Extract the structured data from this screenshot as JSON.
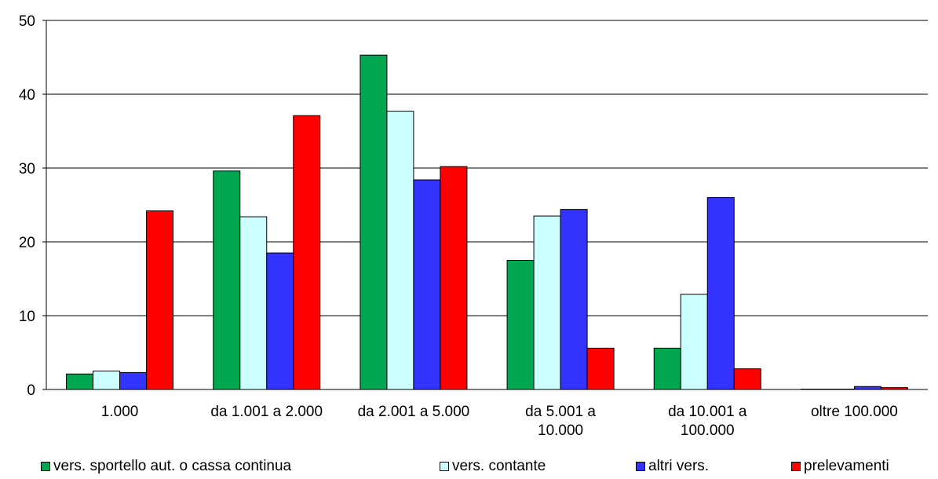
{
  "chart_data": {
    "type": "bar",
    "title": "",
    "xlabel": "",
    "ylabel": "",
    "ylim": [
      0,
      50
    ],
    "yticks": [
      0,
      10,
      20,
      30,
      40,
      50
    ],
    "grid": true,
    "legend_position": "bottom",
    "categories": [
      [
        "1.000"
      ],
      [
        "da 1.001 a 2.000"
      ],
      [
        "da 2.001 a 5.000"
      ],
      [
        "da 5.001 a",
        "10.000"
      ],
      [
        "da 10.001 a",
        "100.000"
      ],
      [
        "oltre 100.000"
      ]
    ],
    "series": [
      {
        "name": "vers. sportello aut. o cassa continua",
        "color": "#00a650",
        "values": [
          2.1,
          29.6,
          45.3,
          17.5,
          5.6,
          0.05
        ]
      },
      {
        "name": "vers. contante",
        "color": "#ccffff",
        "values": [
          2.5,
          23.4,
          37.7,
          23.5,
          12.9,
          0.05
        ]
      },
      {
        "name": "altri vers.",
        "color": "#3333ff",
        "values": [
          2.3,
          18.5,
          28.4,
          24.4,
          26.0,
          0.4
        ]
      },
      {
        "name": "prelevamenti",
        "color": "#ff0000",
        "values": [
          24.2,
          37.1,
          30.2,
          5.6,
          2.8,
          0.25
        ]
      }
    ]
  }
}
